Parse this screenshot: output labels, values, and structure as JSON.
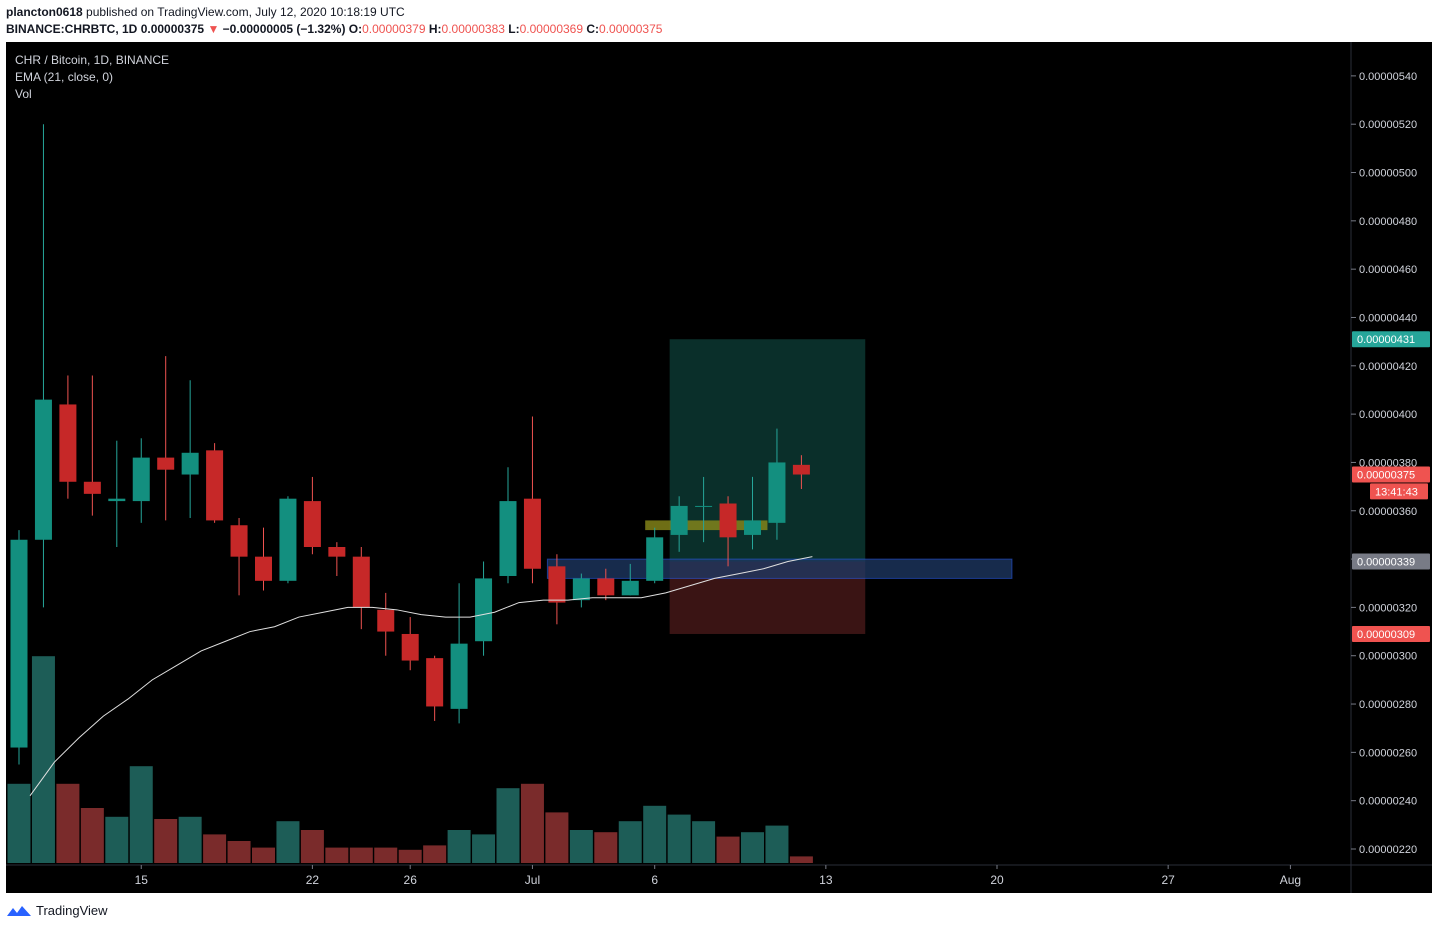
{
  "header": {
    "author": "plancton0618",
    "published": "published on TradingView.com, July 12, 2020 10:18:19 UTC",
    "symbol": "BINANCE:CHRBTC, 1D",
    "last": "0.00000375",
    "arrow": "▼",
    "change": "−0.00000005 (−1.32%)",
    "o_label": "O:",
    "o": "0.00000379",
    "h_label": "H:",
    "h": "0.00000383",
    "l_label": "L:",
    "l": "0.00000369",
    "c_label": "C:",
    "c": "0.00000375"
  },
  "legend": {
    "title": "CHR / Bitcoin, 1D, BINANCE",
    "ema": "EMA (21, close, 0)",
    "vol": "Vol"
  },
  "footer": {
    "brand": "TradingView"
  },
  "colors": {
    "up": "#26a69a",
    "down": "#ef5350",
    "upBody": "#138f7f",
    "downBody": "#c62828",
    "volUp": "#1d5d57",
    "volDown": "#7a2b2b",
    "bg": "#000000",
    "grid": "#1e222d",
    "profitZone": "#0a2f2a",
    "lossZone": "#3a1414",
    "blueZone": "#1f3a66",
    "yellowZone": "#8a8a1a",
    "ema": "#e0e0e0"
  },
  "chart_data": {
    "type": "candlestick",
    "title": "CHR / Bitcoin, 1D, BINANCE",
    "xaxis_ticks": [
      {
        "label": "15",
        "i": 5
      },
      {
        "label": "22",
        "i": 12
      },
      {
        "label": "26",
        "i": 16
      },
      {
        "label": "Jul",
        "i": 21
      },
      {
        "label": "6",
        "i": 26
      },
      {
        "label": "13",
        "i": 33
      },
      {
        "label": "20",
        "i": 40
      },
      {
        "label": "27",
        "i": 47
      },
      {
        "label": "Aug",
        "i": 52
      }
    ],
    "yaxis_ticks": [
      "0.00000220",
      "0.00000240",
      "0.00000260",
      "0.00000280",
      "0.00000300",
      "0.00000320",
      "0.00000340",
      "0.00000360",
      "0.00000380",
      "0.00000400",
      "0.00000420",
      "0.00000440",
      "0.00000460",
      "0.00000480",
      "0.00000500",
      "0.00000520",
      "0.00000540"
    ],
    "ylim": [
      2.17e-06,
      5.52e-06
    ],
    "candles": [
      {
        "o": 262,
        "h": 352,
        "l": 255,
        "c": 348
      },
      {
        "o": 348,
        "h": 520,
        "l": 320,
        "c": 406
      },
      {
        "o": 404,
        "h": 416,
        "l": 365,
        "c": 372
      },
      {
        "o": 372,
        "h": 416,
        "l": 358,
        "c": 367
      },
      {
        "o": 364,
        "h": 389,
        "l": 345,
        "c": 365
      },
      {
        "o": 364,
        "h": 390,
        "l": 355,
        "c": 382
      },
      {
        "o": 382,
        "h": 424,
        "l": 356,
        "c": 377
      },
      {
        "o": 375,
        "h": 414,
        "l": 357,
        "c": 384
      },
      {
        "o": 385,
        "h": 388,
        "l": 355,
        "c": 356
      },
      {
        "o": 354,
        "h": 357,
        "l": 325,
        "c": 341
      },
      {
        "o": 341,
        "h": 353,
        "l": 327,
        "c": 331
      },
      {
        "o": 331,
        "h": 366,
        "l": 330,
        "c": 365
      },
      {
        "o": 364,
        "h": 374,
        "l": 342,
        "c": 345
      },
      {
        "o": 345,
        "h": 347,
        "l": 333,
        "c": 341
      },
      {
        "o": 341,
        "h": 345,
        "l": 311,
        "c": 320
      },
      {
        "o": 319,
        "h": 326,
        "l": 300,
        "c": 310
      },
      {
        "o": 309,
        "h": 316,
        "l": 294,
        "c": 298
      },
      {
        "o": 299,
        "h": 300,
        "l": 273,
        "c": 279
      },
      {
        "o": 278,
        "h": 330,
        "l": 272,
        "c": 305
      },
      {
        "o": 306,
        "h": 339,
        "l": 300,
        "c": 332
      },
      {
        "o": 333,
        "h": 378,
        "l": 330,
        "c": 364
      },
      {
        "o": 365,
        "h": 399,
        "l": 330,
        "c": 336
      },
      {
        "o": 337,
        "h": 342,
        "l": 313,
        "c": 322
      },
      {
        "o": 323,
        "h": 334,
        "l": 320,
        "c": 332
      },
      {
        "o": 332,
        "h": 336,
        "l": 323,
        "c": 325
      },
      {
        "o": 325,
        "h": 338,
        "l": 325,
        "c": 331
      },
      {
        "o": 331,
        "h": 353,
        "l": 330,
        "c": 349
      },
      {
        "o": 350,
        "h": 366,
        "l": 343,
        "c": 362
      },
      {
        "o": 362,
        "h": 374,
        "l": 347,
        "c": 362
      },
      {
        "o": 363,
        "h": 366,
        "l": 337,
        "c": 349
      },
      {
        "o": 350,
        "h": 374,
        "l": 344,
        "c": 356
      },
      {
        "o": 355,
        "h": 394,
        "l": 348,
        "c": 380
      },
      {
        "o": 379,
        "h": 383,
        "l": 369,
        "c": 375
      }
    ],
    "volume": [
      36,
      94,
      36,
      25,
      21,
      44,
      20,
      21,
      13,
      10,
      7,
      19,
      15,
      7,
      7,
      7,
      6,
      8,
      15,
      13,
      34,
      36,
      23,
      15,
      14,
      19,
      26,
      22,
      19,
      12,
      14,
      17,
      3
    ],
    "ema": [
      242,
      256,
      266,
      275,
      282,
      290,
      296,
      302,
      306,
      310,
      312,
      316,
      318,
      320,
      320,
      319,
      317,
      316,
      316,
      318,
      322,
      323,
      323,
      324,
      324,
      324,
      326,
      329,
      332,
      334,
      336,
      339,
      341
    ],
    "zones": {
      "profit": {
        "start": 27,
        "end": 35,
        "low": 339,
        "high": 431
      },
      "loss": {
        "start": 27,
        "end": 35,
        "low": 309,
        "high": 339
      },
      "entry": {
        "start": 22,
        "end": 41,
        "low": 332,
        "high": 340
      },
      "support": {
        "start": 26,
        "end": 31,
        "low": 352,
        "high": 356
      }
    },
    "price_labels": [
      {
        "value": "0.00000431",
        "price": 431,
        "color": "#26a69a"
      },
      {
        "value": "0.00000375",
        "price": 375,
        "color": "#ef5350"
      },
      {
        "value": "13:41:43",
        "price": 368,
        "color": "#ef5350"
      },
      {
        "value": "0.00000339",
        "price": 339,
        "color": "#787b86"
      },
      {
        "value": "0.00000309",
        "price": 309,
        "color": "#ef5350"
      }
    ]
  }
}
